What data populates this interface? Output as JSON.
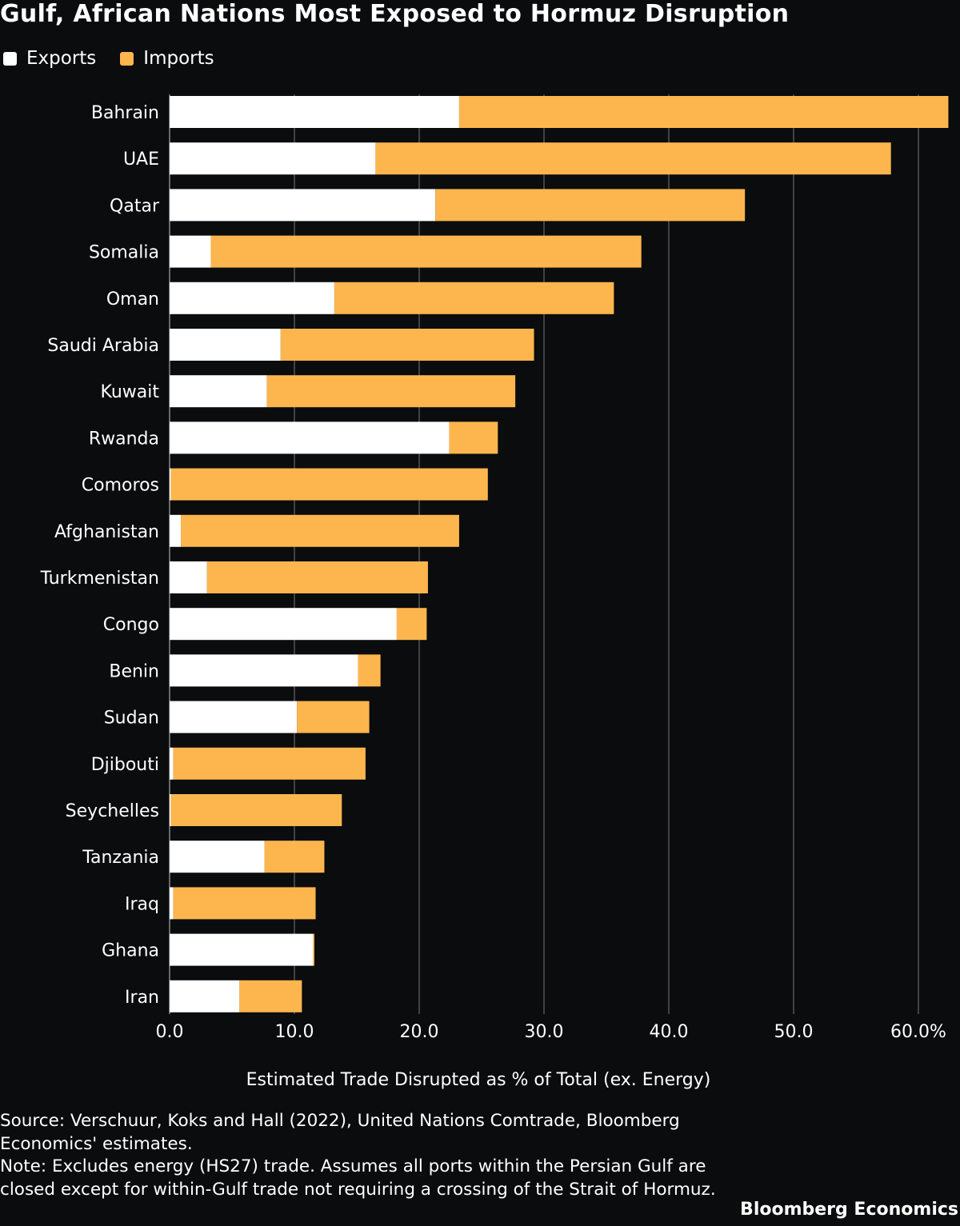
{
  "title": "Gulf, African Nations Most Exposed to Hormuz Disruption",
  "legend": [
    {
      "label": "Exports",
      "color": "#ffffff"
    },
    {
      "label": "Imports",
      "color": "#fdb64e"
    }
  ],
  "chart_data": {
    "type": "bar",
    "orientation": "horizontal",
    "stacked": true,
    "categories": [
      "Bahrain",
      "UAE",
      "Qatar",
      "Somalia",
      "Oman",
      "Saudi Arabia",
      "Kuwait",
      "Rwanda",
      "Comoros",
      "Afghanistan",
      "Turkmenistan",
      "Congo",
      "Benin",
      "Sudan",
      "Djibouti",
      "Seychelles",
      "Tanzania",
      "Iraq",
      "Ghana",
      "Iran"
    ],
    "series": [
      {
        "name": "Exports",
        "color": "#ffffff",
        "values": [
          23.2,
          16.5,
          21.3,
          3.3,
          13.2,
          8.9,
          7.8,
          22.4,
          0.1,
          0.9,
          3.0,
          18.2,
          15.1,
          10.2,
          0.3,
          0.1,
          7.6,
          0.3,
          11.5,
          5.6
        ]
      },
      {
        "name": "Imports",
        "color": "#fdb64e",
        "values": [
          39.2,
          41.3,
          24.8,
          34.5,
          22.4,
          20.3,
          19.9,
          3.9,
          25.4,
          22.3,
          17.7,
          2.4,
          1.8,
          5.8,
          15.4,
          13.7,
          4.8,
          11.4,
          0.1,
          5.0
        ]
      }
    ],
    "xlabel": "Estimated Trade Disrupted as % of Total (ex. Energy)",
    "xticks": [
      "0.0",
      "10.0",
      "20.0",
      "30.0",
      "40.0",
      "50.0",
      "60.0%"
    ],
    "xlim": [
      0,
      62.4
    ],
    "grid": true,
    "legend_position": "top-left"
  },
  "notes": {
    "source": "Source: Verschuur, Koks and Hall (2022), United Nations Comtrade, Bloomberg Economics' estimates.",
    "note": "Note: Excludes energy (HS27) trade. Assumes all ports within the Persian Gulf are closed except for within-Gulf trade not requiring a crossing of the Strait of Hormuz."
  },
  "brand": "Bloomberg Economics"
}
